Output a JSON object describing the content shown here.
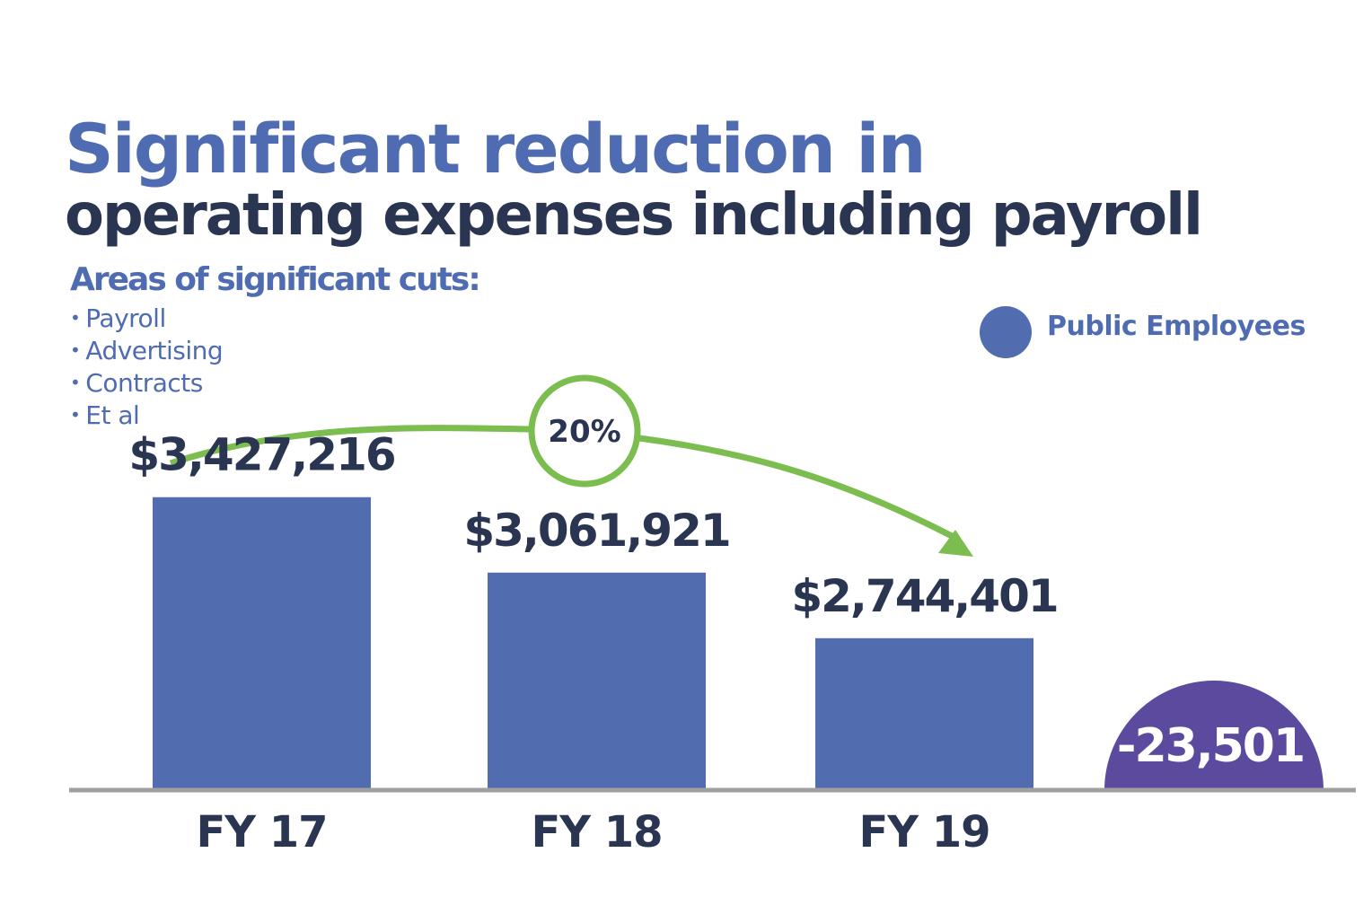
{
  "header": {
    "title_line1": "Significant reduction in",
    "title_line2": "operating expenses including payroll"
  },
  "cuts": {
    "heading": "Areas of significant cuts:",
    "bullet": "•",
    "items": [
      "Payroll",
      "Advertising",
      "Contracts",
      "Et al"
    ]
  },
  "colors": {
    "bar": "#516db0",
    "heading_blue": "#4f6cb2",
    "dark_text": "#2a3552",
    "axis": "#a0a0a0",
    "arrow": "#7bbd4f",
    "employees_semicircle": "#5b4a9e"
  },
  "chart_data": {
    "type": "bar",
    "categories": [
      "FY 17",
      "FY 18",
      "FY 19"
    ],
    "values": [
      3427216,
      3061921,
      2744401
    ],
    "value_labels": [
      "$3,427,216",
      "$3,061,921",
      "$2,744,401"
    ],
    "ylim": [
      2000000,
      3500000
    ],
    "grid": false,
    "legend": {
      "placement": "top-right",
      "entries": [
        {
          "label": "Public Employees",
          "color": "#516db0"
        }
      ]
    },
    "annotations": {
      "change_percent": "20%",
      "employees_change": "-23,501"
    }
  }
}
